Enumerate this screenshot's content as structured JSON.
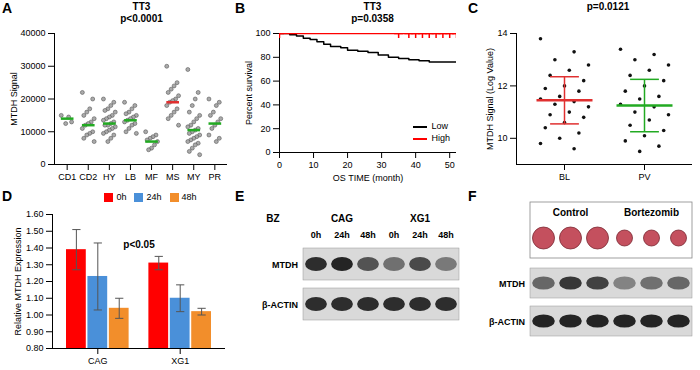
{
  "chart_data": [
    {
      "panel": "A",
      "type": "scatter",
      "title": "TT3",
      "annotation": "p<0.0001",
      "y_label": "MTDH Signal",
      "categories": [
        "CD1",
        "CD2",
        "HY",
        "LB",
        "MF",
        "MS",
        "MY",
        "PR"
      ],
      "values": [
        [
          15000,
          13000,
          14500,
          12500
        ],
        [
          22000,
          20000,
          17000,
          16000,
          15000,
          14000,
          13000,
          12500,
          12000,
          11000,
          10000,
          9500,
          9000,
          8000,
          7000
        ],
        [
          20000,
          19000,
          18000,
          17000,
          16500,
          16000,
          15000,
          14500,
          14000,
          13500,
          13000,
          12500,
          12000,
          12000,
          11500,
          11000,
          10500,
          10000,
          9500,
          9000,
          8000,
          7000
        ],
        [
          19000,
          18000,
          17000,
          16000,
          15500,
          15000,
          14500,
          14000,
          13500,
          13000,
          12500,
          12000,
          11000,
          10000,
          9500
        ],
        [
          10000,
          9000,
          8500,
          8000,
          7500,
          7000,
          6000,
          5000,
          4500
        ],
        [
          30000,
          25000,
          24000,
          23000,
          22000,
          21000,
          20000,
          19500,
          19000,
          18000,
          17000,
          16000,
          15000,
          14000,
          12000
        ],
        [
          29000,
          22000,
          20000,
          18000,
          16000,
          15000,
          14000,
          13000,
          12000,
          11500,
          11000,
          10500,
          10000,
          9500,
          9000,
          8500,
          8000,
          7500,
          7000,
          6500,
          6000,
          5000,
          4000,
          3000
        ],
        [
          20000,
          19000,
          18000,
          16000,
          15000,
          14000,
          13000,
          12000,
          11000,
          9000,
          8000,
          7000
        ]
      ],
      "means": [
        14000,
        12000,
        12500,
        13500,
        7000,
        19000,
        10500,
        12500
      ],
      "colors": [
        "#22aa22",
        "#22aa22",
        "#22aa22",
        "#22aa22",
        "#22aa22",
        "#e03030",
        "#22aa22",
        "#22aa22"
      ],
      "ylim": [
        0,
        40000
      ],
      "yticks": [
        0,
        10000,
        20000,
        30000,
        40000
      ]
    },
    {
      "panel": "B",
      "type": "line",
      "title": "TT3",
      "annotation": "p=0.0358",
      "x_label": "OS TIME (month)",
      "y_label": "Percent survival",
      "xlim": [
        0,
        52
      ],
      "xticks": [
        0,
        10,
        20,
        30,
        40,
        50
      ],
      "ylim": [
        0,
        100
      ],
      "yticks": [
        0,
        20,
        40,
        60,
        80,
        100
      ],
      "legend": "bottom-right",
      "series": [
        {
          "name": "Low",
          "color": "#000000",
          "line_style": "step",
          "x": [
            0,
            3,
            5,
            7,
            9,
            11,
            13,
            15,
            18,
            20,
            23,
            26,
            29,
            32,
            35,
            38,
            41,
            44,
            52
          ],
          "values": [
            100,
            99,
            98,
            96,
            95,
            93,
            91,
            89,
            88,
            86,
            85,
            84,
            82,
            80,
            79,
            78,
            77,
            76,
            76
          ]
        },
        {
          "name": "High",
          "color": "#ff0000",
          "line_style": "step",
          "marker": "plus",
          "x": [
            0,
            35,
            38,
            40,
            42,
            44,
            46,
            48,
            50,
            52
          ],
          "values": [
            100,
            100,
            100,
            100,
            100,
            100,
            100,
            100,
            100,
            100
          ]
        }
      ]
    },
    {
      "panel": "C",
      "type": "scatter",
      "annotation": "p=0.0121",
      "y_label": "MTDH Signal (Log Value)",
      "categories": [
        "BL",
        "PV"
      ],
      "values": [
        [
          13.8,
          13.3,
          13.0,
          12.8,
          12.6,
          12.4,
          12.2,
          12.0,
          11.9,
          11.8,
          11.6,
          11.5,
          11.4,
          11.3,
          11.2,
          11.0,
          10.9,
          10.8,
          10.6,
          10.4,
          10.2,
          10.0,
          9.8,
          9.6
        ],
        [
          13.4,
          13.2,
          13.0,
          12.8,
          12.6,
          12.4,
          12.2,
          12.0,
          11.8,
          11.6,
          11.5,
          11.3,
          11.2,
          11.0,
          10.9,
          10.7,
          10.5,
          10.3,
          10.1,
          9.9,
          9.7,
          9.5
        ]
      ],
      "means": [
        11.45,
        11.25
      ],
      "sds": [
        0.9,
        1.0
      ],
      "colors": [
        "#e03030",
        "#22aa22"
      ],
      "ylim": [
        9,
        14
      ],
      "yticks": [
        10,
        12,
        14
      ]
    },
    {
      "panel": "D",
      "type": "bar",
      "annotation": "p<0.05",
      "y_label": "Relative MTDH Expression",
      "categories": [
        "CAG",
        "XG1"
      ],
      "legend": "top",
      "series": [
        {
          "name": "0h",
          "color": "#ff0000",
          "values": [
            1.39,
            1.31
          ],
          "errors": [
            0.12,
            0.04
          ]
        },
        {
          "name": "24h",
          "color": "#4a90d9",
          "values": [
            1.23,
            1.1
          ],
          "errors": [
            0.2,
            0.08
          ]
        },
        {
          "name": "48h",
          "color": "#f28e2b",
          "values": [
            1.04,
            1.02
          ],
          "errors": [
            0.06,
            0.02
          ]
        }
      ],
      "ylim": [
        0.8,
        1.6
      ],
      "yticks": [
        {
          "value": 0.8,
          "label": "0.80"
        },
        {
          "value": 0.9,
          "label": "0.90"
        },
        {
          "value": 1.0,
          "label": "1.00"
        },
        {
          "value": 1.1,
          "label": "1.10"
        },
        {
          "value": 1.2,
          "label": "1.20"
        },
        {
          "value": 1.3,
          "label": "1.30"
        },
        {
          "value": 1.4,
          "label": "1.40"
        },
        {
          "value": 1.5,
          "label": "1.50"
        },
        {
          "value": 1.6,
          "label": "1.60"
        }
      ]
    }
  ],
  "blots": [
    {
      "panel": "E",
      "treatment": "BZ",
      "groups": [
        "CAG",
        "XG1"
      ],
      "lanes": [
        "0h",
        "24h",
        "48h"
      ],
      "rows": [
        "MTDH",
        "β-ACTIN"
      ]
    },
    {
      "panel": "F",
      "groups": [
        "Control",
        "Bortezomib"
      ],
      "rows": [
        "MTDH",
        "β-ACTIN"
      ]
    }
  ]
}
